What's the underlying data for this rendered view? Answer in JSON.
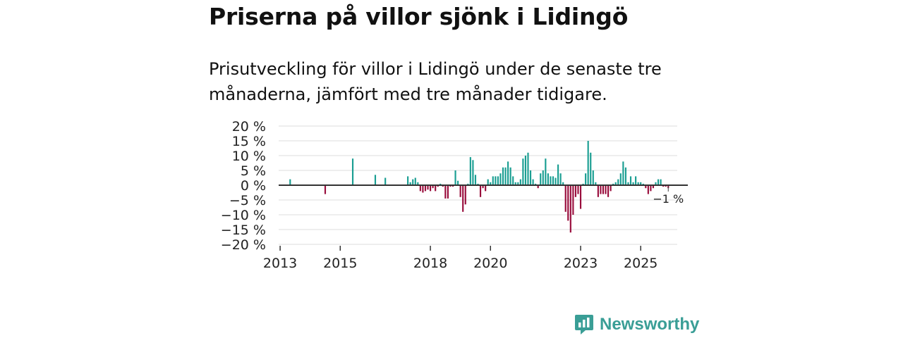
{
  "title": "Priserna på villor sjönk i Lidingö",
  "subtitle": "Prisutveckling för villor i Lidingö under de senaste tre månaderna, jämfört med tre månader tidigare.",
  "brand": {
    "name": "Newsworthy"
  },
  "colors": {
    "positive": "#1a9e92",
    "negative": "#990d3c",
    "grid": "#dddddd",
    "axis": "#333333",
    "brand": "#3a9e96"
  },
  "chart_data": {
    "type": "bar",
    "ylim": [
      -20,
      20
    ],
    "yticks": [
      20,
      15,
      10,
      5,
      0,
      -5,
      -10,
      -15,
      -20
    ],
    "ytick_labels": [
      "20 %",
      "15 %",
      "10 %",
      "5 %",
      "0 %",
      "−5 %",
      "−10 %",
      "−15 %",
      "−20 %"
    ],
    "x_range": [
      "2012-11",
      "2026-05"
    ],
    "xticks": [
      {
        "label": "2013",
        "month": "2013-01"
      },
      {
        "label": "2015",
        "month": "2015-01"
      },
      {
        "label": "2018",
        "month": "2018-01"
      },
      {
        "label": "2020",
        "month": "2020-01"
      },
      {
        "label": "2023",
        "month": "2023-01"
      },
      {
        "label": "2025",
        "month": "2025-01"
      }
    ],
    "annotation": {
      "text": "−1 %",
      "month": "2025-12"
    },
    "series": [
      {
        "name": "Prisutveckling",
        "points": [
          [
            "2013-05",
            2
          ],
          [
            "2014-07",
            -3
          ],
          [
            "2015-06",
            9
          ],
          [
            "2016-03",
            3.5
          ],
          [
            "2016-07",
            2.5
          ],
          [
            "2017-04",
            3
          ],
          [
            "2017-05",
            1
          ],
          [
            "2017-06",
            2
          ],
          [
            "2017-07",
            2.5
          ],
          [
            "2017-08",
            1
          ],
          [
            "2017-09",
            -2
          ],
          [
            "2017-10",
            -2.5
          ],
          [
            "2017-11",
            -2
          ],
          [
            "2017-12",
            -1.5
          ],
          [
            "2018-01",
            -2
          ],
          [
            "2018-02",
            -1
          ],
          [
            "2018-03",
            -2
          ],
          [
            "2018-04",
            -0.5
          ],
          [
            "2018-05",
            0.5
          ],
          [
            "2018-06",
            -0.5
          ],
          [
            "2018-07",
            -4.5
          ],
          [
            "2018-08",
            -4.5
          ],
          [
            "2018-09",
            -0.5
          ],
          [
            "2018-10",
            -0.5
          ],
          [
            "2018-11",
            5
          ],
          [
            "2018-12",
            1.5
          ],
          [
            "2019-01",
            -4
          ],
          [
            "2019-02",
            -9
          ],
          [
            "2019-03",
            -6.5
          ],
          [
            "2019-04",
            0.5
          ],
          [
            "2019-05",
            9.5
          ],
          [
            "2019-06",
            8.5
          ],
          [
            "2019-07",
            3.5
          ],
          [
            "2019-08",
            0.5
          ],
          [
            "2019-09",
            -4
          ],
          [
            "2019-10",
            -1
          ],
          [
            "2019-11",
            -2
          ],
          [
            "2019-12",
            2
          ],
          [
            "2020-01",
            1
          ],
          [
            "2020-02",
            3
          ],
          [
            "2020-03",
            3
          ],
          [
            "2020-04",
            3
          ],
          [
            "2020-05",
            4
          ],
          [
            "2020-06",
            6
          ],
          [
            "2020-07",
            6
          ],
          [
            "2020-08",
            8
          ],
          [
            "2020-09",
            6
          ],
          [
            "2020-10",
            3
          ],
          [
            "2020-11",
            1
          ],
          [
            "2020-12",
            1
          ],
          [
            "2021-01",
            2
          ],
          [
            "2021-02",
            9
          ],
          [
            "2021-03",
            10
          ],
          [
            "2021-04",
            11
          ],
          [
            "2021-05",
            5
          ],
          [
            "2021-06",
            2
          ],
          [
            "2021-07",
            0.5
          ],
          [
            "2021-08",
            -1
          ],
          [
            "2021-09",
            4
          ],
          [
            "2021-10",
            5
          ],
          [
            "2021-11",
            9
          ],
          [
            "2021-12",
            4
          ],
          [
            "2022-01",
            3
          ],
          [
            "2022-02",
            3
          ],
          [
            "2022-03",
            2.5
          ],
          [
            "2022-04",
            7
          ],
          [
            "2022-05",
            4
          ],
          [
            "2022-06",
            1
          ],
          [
            "2022-07",
            -9
          ],
          [
            "2022-08",
            -12
          ],
          [
            "2022-09",
            -16
          ],
          [
            "2022-10",
            -10
          ],
          [
            "2022-11",
            -4
          ],
          [
            "2022-12",
            -3
          ],
          [
            "2023-01",
            -8
          ],
          [
            "2023-02",
            0.5
          ],
          [
            "2023-03",
            4
          ],
          [
            "2023-04",
            15
          ],
          [
            "2023-05",
            11
          ],
          [
            "2023-06",
            5
          ],
          [
            "2023-07",
            1
          ],
          [
            "2023-08",
            -4
          ],
          [
            "2023-09",
            -3
          ],
          [
            "2023-10",
            -3
          ],
          [
            "2023-11",
            -3
          ],
          [
            "2023-12",
            -4
          ],
          [
            "2024-01",
            -2
          ],
          [
            "2024-02",
            0.5
          ],
          [
            "2024-03",
            1
          ],
          [
            "2024-04",
            2
          ],
          [
            "2024-05",
            4
          ],
          [
            "2024-06",
            8
          ],
          [
            "2024-07",
            6
          ],
          [
            "2024-08",
            1
          ],
          [
            "2024-09",
            3
          ],
          [
            "2024-10",
            1
          ],
          [
            "2024-11",
            3
          ],
          [
            "2024-12",
            1
          ],
          [
            "2025-01",
            1
          ],
          [
            "2025-02",
            0.5
          ],
          [
            "2025-03",
            -1
          ],
          [
            "2025-04",
            -3
          ],
          [
            "2025-05",
            -2
          ],
          [
            "2025-06",
            -1
          ],
          [
            "2025-07",
            1
          ],
          [
            "2025-08",
            2
          ],
          [
            "2025-09",
            2
          ],
          [
            "2025-10",
            -0.5
          ],
          [
            "2025-11",
            -0.5
          ],
          [
            "2025-12",
            -1
          ]
        ]
      }
    ]
  }
}
